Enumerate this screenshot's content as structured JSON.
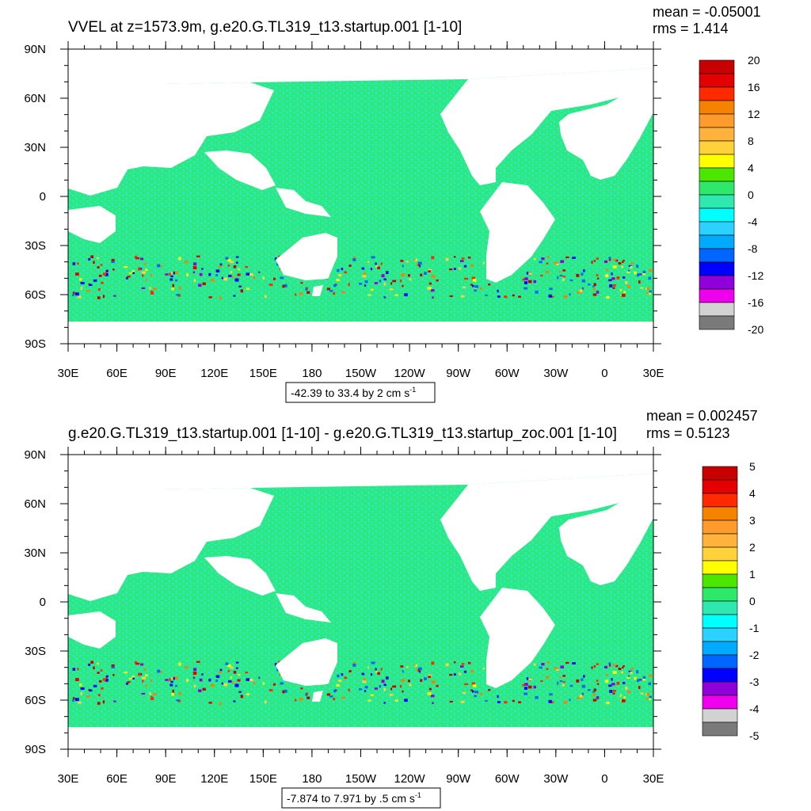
{
  "colors": {
    "ocean_base": "#2ee87a",
    "ocean_cyan": "#2ee6d0",
    "land": "#ffffff"
  },
  "chart_data": [
    {
      "type": "heatmap",
      "title": "VVEL at z=1573.9m, g.e20.G.TL319_t13.startup.001 [1-10]",
      "stats": {
        "mean": "mean = -0.05001",
        "rms": "rms = 1.414"
      },
      "caption": {
        "text": "-42.39 to 33.4 by 2 cm s",
        "superscript": "-1"
      },
      "x_ticks": [
        "30E",
        "60E",
        "90E",
        "120E",
        "150E",
        "180",
        "150W",
        "120W",
        "90W",
        "60W",
        "30W",
        "0",
        "30E"
      ],
      "y_ticks": [
        "90N",
        "60N",
        "30N",
        "0",
        "30S",
        "60S",
        "90S"
      ],
      "xlim": [
        30,
        390
      ],
      "ylim": [
        -90,
        90
      ],
      "colorbar": {
        "labels": [
          "20",
          "16",
          "12",
          "8",
          "4",
          "0",
          "-4",
          "-8",
          "-12",
          "-16",
          "-20"
        ],
        "colors": [
          "#c80000",
          "#e40000",
          "#ff2a00",
          "#f58200",
          "#ff9a2c",
          "#ffb33c",
          "#ffd23c",
          "#ffff00",
          "#4ce600",
          "#2ee86a",
          "#2ee8b0",
          "#00ffff",
          "#2cd2ff",
          "#00aaff",
          "#0066ff",
          "#0000ff",
          "#9000d8",
          "#ee00ee",
          "#d2d2d2",
          "#7a7a7a"
        ]
      }
    },
    {
      "type": "heatmap",
      "title": "g.e20.G.TL319_t13.startup.001 [1-10] - g.e20.G.TL319_t13.startup_zoc.001 [1-10]",
      "stats": {
        "mean": "mean = 0.002457",
        "rms": "rms = 0.5123"
      },
      "caption": {
        "text": "-7.874 to 7.971 by .5 cm s",
        "superscript": "-1"
      },
      "x_ticks": [
        "30E",
        "60E",
        "90E",
        "120E",
        "150E",
        "180",
        "150W",
        "120W",
        "90W",
        "60W",
        "30W",
        "0",
        "30E"
      ],
      "y_ticks": [
        "90N",
        "60N",
        "30N",
        "0",
        "30S",
        "60S",
        "90S"
      ],
      "xlim": [
        30,
        390
      ],
      "ylim": [
        -90,
        90
      ],
      "colorbar": {
        "labels": [
          "5",
          "4",
          "3",
          "2",
          "1",
          "0",
          "-1",
          "-2",
          "-3",
          "-4",
          "-5"
        ],
        "colors": [
          "#c80000",
          "#e40000",
          "#ff2a00",
          "#f58200",
          "#ff9a2c",
          "#ffb33c",
          "#ffd23c",
          "#ffff00",
          "#4ce600",
          "#2ee86a",
          "#2ee8b0",
          "#00ffff",
          "#2cd2ff",
          "#00aaff",
          "#0066ff",
          "#0000ff",
          "#9000d8",
          "#ee00ee",
          "#d2d2d2",
          "#7a7a7a"
        ]
      }
    }
  ]
}
